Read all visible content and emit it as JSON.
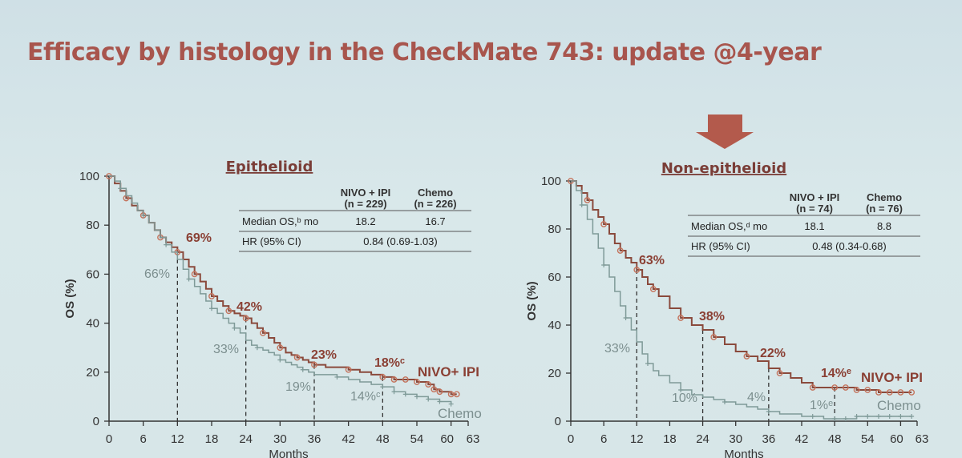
{
  "title": "Efficacy by histology in the CheckMate 743: update @4-year",
  "chart_data": [
    {
      "type": "line",
      "title": "Epithelioid",
      "xlabel": "Months",
      "ylabel": "OS (%)",
      "xlim": [
        0,
        63
      ],
      "ylim": [
        0,
        100
      ],
      "xticks": [
        "0",
        "6",
        "12",
        "18",
        "24",
        "30",
        "36",
        "42",
        "48",
        "54",
        "60",
        "63"
      ],
      "yticks": [
        "0",
        "20",
        "40",
        "60",
        "80",
        "100"
      ],
      "table": {
        "col1": "NIVO + IPI",
        "col1n": "(n = 229)",
        "col2": "Chemo",
        "col2n": "(n = 226)",
        "row1_label": "Median OS,ᵇ mo",
        "row1_v1": "18.2",
        "row1_v2": "16.7",
        "row2_label": "HR (95% CI)",
        "row2_v": "0.84 (0.69-1.03)"
      },
      "annotations": {
        "nivo_12": "69%",
        "chemo_12": "66%",
        "nivo_24": "42%",
        "chemo_24": "33%",
        "nivo_36": "23%",
        "chemo_36": "19%",
        "nivo_48": "18%ᶜ",
        "chemo_48": "14%ᶜ",
        "nivo_label": "NIVO+ IPI",
        "chemo_label": "Chemo"
      },
      "series": [
        {
          "name": "NIVO+ IPI",
          "x": [
            0,
            1,
            2,
            3,
            4,
            5,
            6,
            7,
            8,
            9,
            10,
            11,
            12,
            13,
            14,
            15,
            16,
            17,
            18,
            19,
            20,
            21,
            22,
            23,
            24,
            25,
            26,
            27,
            28,
            29,
            30,
            31,
            32,
            33,
            34,
            35,
            36,
            38,
            40,
            42,
            44,
            46,
            48,
            50,
            52,
            54,
            56,
            57,
            58,
            60,
            61
          ],
          "y": [
            100,
            97,
            94,
            91,
            88,
            86,
            84,
            81,
            78,
            75,
            73,
            71,
            69,
            66,
            63,
            60,
            57,
            54,
            51,
            49,
            47,
            45,
            44,
            43,
            42,
            40,
            38,
            36,
            34,
            32,
            30,
            28,
            27,
            26,
            25,
            24,
            23,
            22,
            22,
            21,
            20,
            19,
            18,
            17,
            17,
            16,
            15,
            13,
            12,
            11,
            11
          ]
        },
        {
          "name": "Chemo",
          "x": [
            0,
            1,
            2,
            3,
            4,
            5,
            6,
            7,
            8,
            9,
            10,
            11,
            12,
            13,
            14,
            15,
            16,
            17,
            18,
            19,
            20,
            21,
            22,
            23,
            24,
            25,
            26,
            27,
            28,
            29,
            30,
            31,
            32,
            33,
            34,
            35,
            36,
            38,
            40,
            42,
            44,
            46,
            48,
            50,
            52,
            54,
            56,
            58,
            60
          ],
          "y": [
            100,
            98,
            95,
            92,
            89,
            86,
            84,
            81,
            78,
            75,
            72,
            69,
            66,
            62,
            58,
            55,
            52,
            49,
            46,
            44,
            42,
            40,
            38,
            36,
            33,
            31,
            30,
            29,
            28,
            27,
            25,
            24,
            23,
            22,
            21,
            20,
            19,
            19,
            18,
            17,
            16,
            15,
            14,
            12,
            11,
            10,
            9,
            8,
            7
          ]
        }
      ]
    },
    {
      "type": "line",
      "title": "Non-epithelioid",
      "xlabel": "Months",
      "ylabel": "OS (%)",
      "xlim": [
        0,
        63
      ],
      "ylim": [
        0,
        100
      ],
      "xticks": [
        "0",
        "6",
        "12",
        "18",
        "24",
        "30",
        "36",
        "42",
        "48",
        "54",
        "60",
        "63"
      ],
      "yticks": [
        "0",
        "20",
        "40",
        "60",
        "80",
        "100"
      ],
      "table": {
        "col1": "NIVO + IPI",
        "col1n": "(n = 74)",
        "col2": "Chemo",
        "col2n": "(n = 76)",
        "row1_label": "Median OS,ᵈ mo",
        "row1_v1": "18.1",
        "row1_v2": "8.8",
        "row2_label": "HR (95% CI)",
        "row2_v": "0.48 (0.34-0.68)"
      },
      "annotations": {
        "nivo_12": "63%",
        "chemo_12": "33%",
        "nivo_24": "38%",
        "chemo_24": "10%",
        "nivo_36": "22%",
        "chemo_36": "4%",
        "nivo_48": "14%ᵉ",
        "chemo_48": "1%ᵉ",
        "nivo_label": "NIVO+ IPI",
        "chemo_label": "Chemo"
      },
      "series": [
        {
          "name": "NIVO+ IPI",
          "x": [
            0,
            1,
            2,
            3,
            4,
            5,
            6,
            7,
            8,
            9,
            10,
            11,
            12,
            13,
            14,
            15,
            16,
            18,
            20,
            22,
            24,
            26,
            28,
            30,
            32,
            34,
            36,
            38,
            40,
            42,
            44,
            46,
            48,
            50,
            52,
            54,
            56,
            58,
            60,
            62
          ],
          "y": [
            100,
            98,
            95,
            92,
            88,
            85,
            82,
            78,
            74,
            71,
            68,
            66,
            63,
            60,
            57,
            55,
            52,
            47,
            43,
            40,
            38,
            35,
            32,
            29,
            27,
            25,
            22,
            20,
            18,
            16,
            14,
            14,
            14,
            14,
            13,
            13,
            12,
            12,
            12,
            12
          ]
        },
        {
          "name": "Chemo",
          "x": [
            0,
            1,
            2,
            3,
            4,
            5,
            6,
            7,
            8,
            9,
            10,
            11,
            12,
            13,
            14,
            15,
            16,
            18,
            20,
            22,
            24,
            26,
            28,
            30,
            32,
            34,
            36,
            38,
            40,
            42,
            44,
            46,
            48,
            50,
            52,
            54,
            56,
            58,
            60,
            62
          ],
          "y": [
            100,
            96,
            90,
            84,
            78,
            72,
            65,
            60,
            54,
            48,
            43,
            38,
            33,
            28,
            24,
            21,
            19,
            16,
            13,
            11,
            10,
            9,
            8,
            7,
            6,
            5,
            4,
            3,
            3,
            2,
            2,
            1,
            1,
            1,
            2,
            2,
            2,
            2,
            2,
            2
          ]
        }
      ]
    }
  ]
}
